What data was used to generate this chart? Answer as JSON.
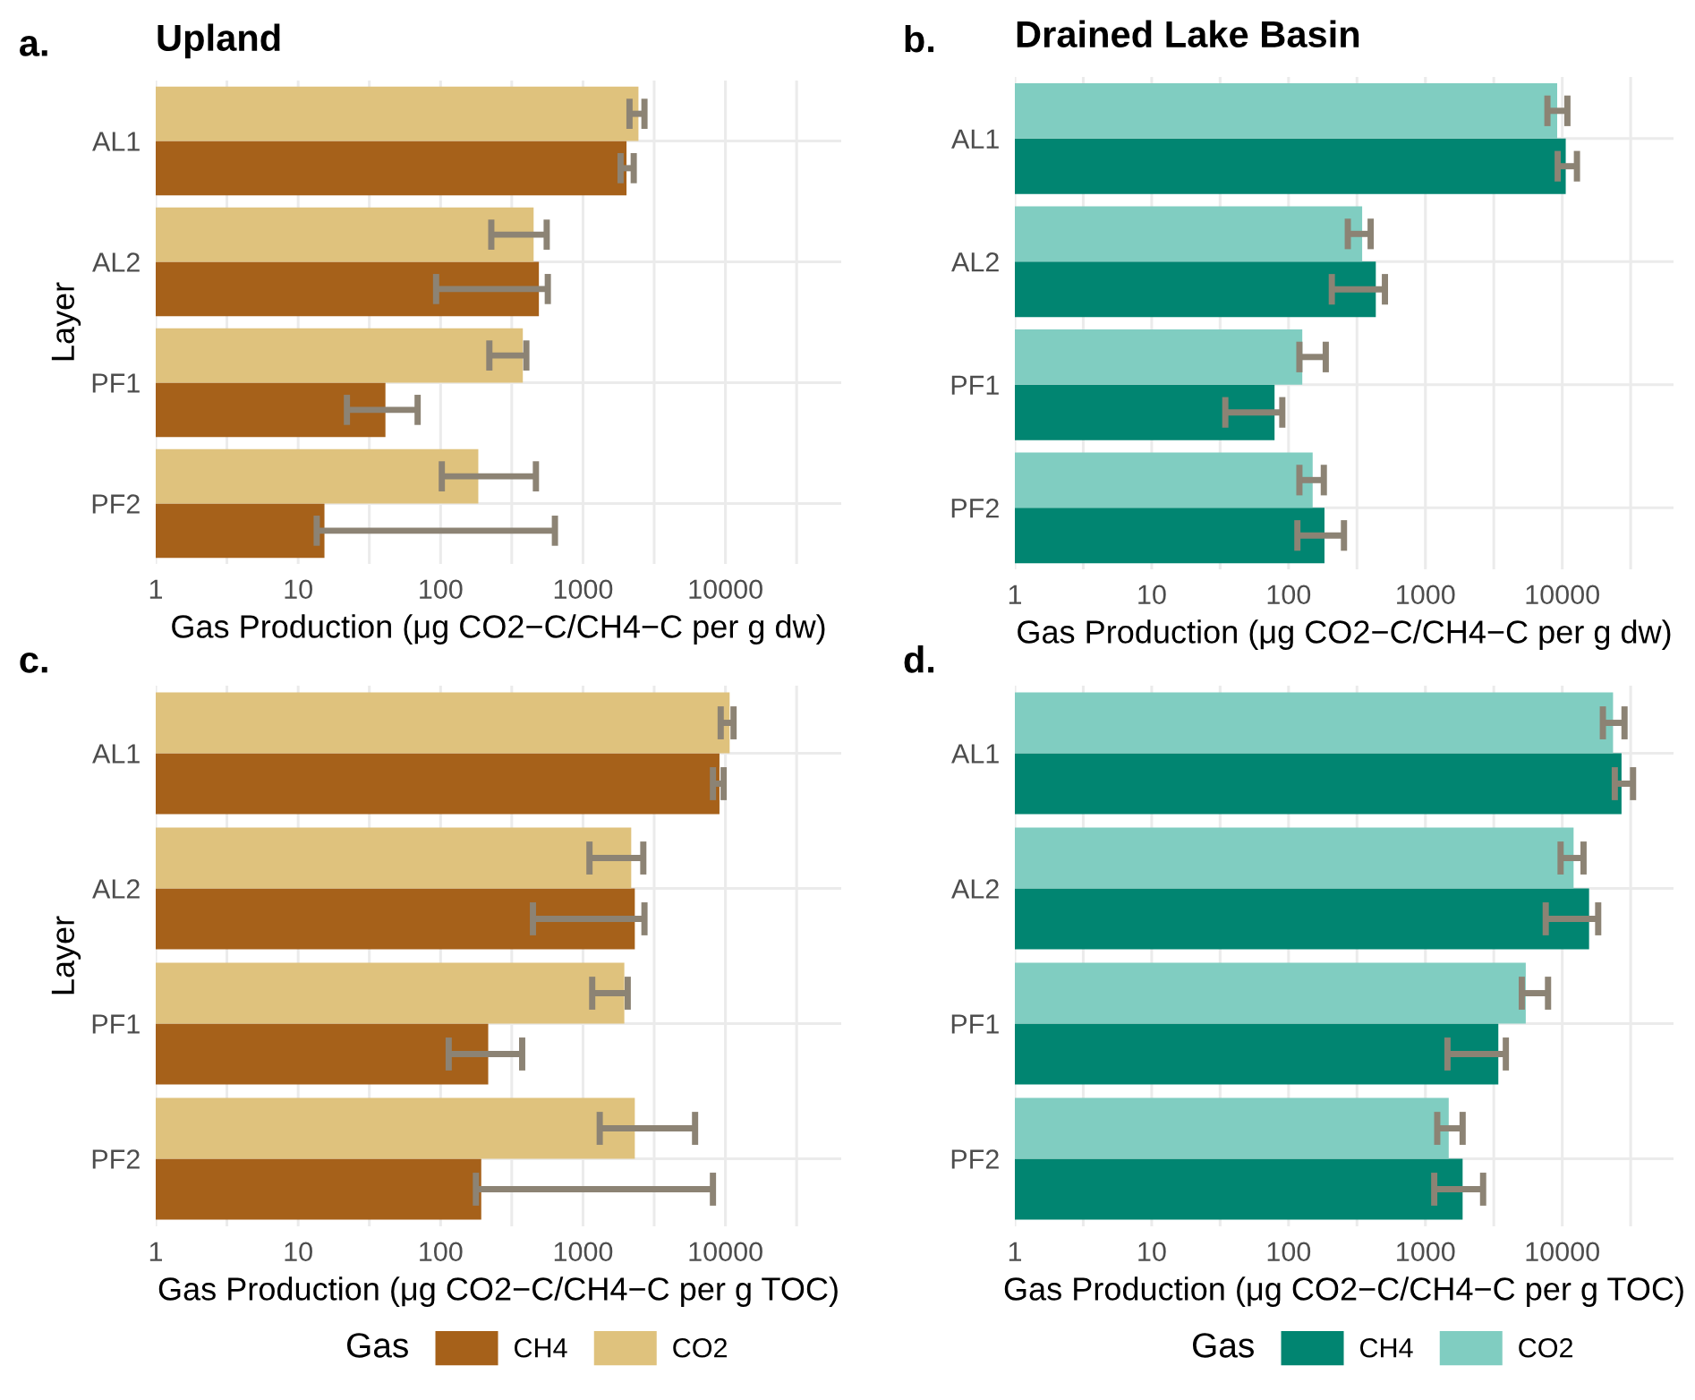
{
  "chart_data": [
    {
      "type": "bar",
      "orientation": "horizontal",
      "title": "Upland",
      "annotations": [
        "a."
      ],
      "xlabel": "Gas Production (μg CO2−C/CH4−C per g dw)",
      "ylabel": "Layer",
      "categories": [
        "AL1",
        "AL2",
        "PF1",
        "PF2"
      ],
      "log": "x",
      "xlim": [
        1,
        65000
      ],
      "xticks": [
        1,
        {
          "value": 3.16,
          "label": null
        },
        10,
        {
          "value": 31.6,
          "label": null
        },
        100,
        {
          "value": 316,
          "label": null
        },
        1000,
        {
          "value": 3160,
          "label": null
        },
        10000,
        {
          "value": 31600,
          "label": null
        }
      ],
      "grid": true,
      "legend": false,
      "series": [
        {
          "color": "#a6611a",
          "values": [
            2020,
            490,
            41,
            15.3
          ],
          "errors": [
            [
              1835,
              2270
            ],
            [
              93,
              566
            ],
            [
              22,
              69
            ],
            [
              13.5,
              635
            ]
          ]
        },
        {
          "color": "#dfc27d",
          "values": [
            2450,
            450,
            378,
            184
          ],
          "errors": [
            [
              2120,
              2700
            ],
            [
              227,
              556
            ],
            [
              220,
              400
            ],
            [
              102,
              467
            ]
          ]
        }
      ]
    },
    {
      "type": "bar",
      "orientation": "horizontal",
      "title": "Drained Lake Basin",
      "annotations": [
        "b."
      ],
      "xlabel": "Gas Production (μg CO2−C/CH4−C per g dw)",
      "categories": [
        "AL1",
        "AL2",
        "PF1",
        "PF2"
      ],
      "log": "x",
      "xlim": [
        1,
        65000
      ],
      "xticks": [
        1,
        {
          "value": 3.16,
          "label": null
        },
        10,
        {
          "value": 31.6,
          "label": null
        },
        100,
        {
          "value": 316,
          "label": null
        },
        1000,
        {
          "value": 3160,
          "label": null
        },
        10000,
        {
          "value": 31600,
          "label": null
        }
      ],
      "grid": true,
      "legend": false,
      "series": [
        {
          "color": "#018571",
          "values": [
            10600,
            434,
            79,
            183
          ],
          "errors": [
            [
              9260,
              12800
            ],
            [
              207,
              506
            ],
            [
              34.5,
              90
            ],
            [
              116,
              254
            ]
          ]
        },
        {
          "color": "#80cdc1",
          "values": [
            9180,
            345,
            126,
            150
          ],
          "errors": [
            [
              7790,
              10900
            ],
            [
              271,
              398
            ],
            [
              120,
              187
            ],
            [
              120,
              181
            ]
          ]
        }
      ]
    },
    {
      "type": "bar",
      "orientation": "horizontal",
      "annotations": [
        "c."
      ],
      "xlabel": "Gas Production (μg CO2−C/CH4−C per g TOC)",
      "ylabel": "Layer",
      "legend_title": "Gas",
      "categories": [
        "AL1",
        "AL2",
        "PF1",
        "PF2"
      ],
      "log": "x",
      "xlim": [
        1,
        65000
      ],
      "xticks": [
        1,
        {
          "value": 3.16,
          "label": null
        },
        10,
        {
          "value": 31.6,
          "label": null
        },
        100,
        {
          "value": 316,
          "label": null
        },
        1000,
        {
          "value": 3160,
          "label": null
        },
        10000,
        {
          "value": 31600,
          "label": null
        }
      ],
      "grid": true,
      "legend": "bottom",
      "series": [
        {
          "name": "CH4",
          "color": "#a6611a",
          "values": [
            9080,
            2310,
            216,
            193
          ],
          "errors": [
            [
              8170,
              9710
            ],
            [
              445,
              2700
            ],
            [
              114,
              374
            ],
            [
              177,
              8170
            ]
          ]
        },
        {
          "name": "CO2",
          "color": "#dfc27d",
          "values": [
            10700,
            2180,
            1950,
            2310
          ],
          "errors": [
            [
              9260,
              11400
            ],
            [
              1110,
              2650
            ],
            [
              1160,
              2060
            ],
            [
              1310,
              6120
            ]
          ]
        }
      ]
    },
    {
      "type": "bar",
      "orientation": "horizontal",
      "annotations": [
        "d."
      ],
      "xlabel": "Gas Production (μg CO2−C/CH4−C per g TOC)",
      "legend_title": "Gas",
      "categories": [
        "AL1",
        "AL2",
        "PF1",
        "PF2"
      ],
      "log": "x",
      "xlim": [
        1,
        65000
      ],
      "xticks": [
        1,
        {
          "value": 3.16,
          "label": null
        },
        10,
        {
          "value": 31.6,
          "label": null
        },
        100,
        {
          "value": 316,
          "label": null
        },
        1000,
        {
          "value": 3160,
          "label": null
        },
        10000,
        {
          "value": 31600,
          "label": null
        }
      ],
      "grid": true,
      "legend": "bottom",
      "series": [
        {
          "name": "CH4",
          "color": "#018571",
          "values": [
            27100,
            15700,
            3410,
            1870
          ],
          "errors": [
            [
              24200,
              32900
            ],
            [
              7570,
              18300
            ],
            [
              1450,
              3870
            ],
            [
              1160,
              2640
            ]
          ]
        },
        {
          "name": "CO2",
          "color": "#80cdc1",
          "values": [
            23500,
            12100,
            5410,
            1480
          ],
          "errors": [
            [
              19800,
              28500
            ],
            [
              9720,
              14300
            ],
            [
              5060,
              7870
            ],
            [
              1220,
              1870
            ]
          ]
        }
      ]
    }
  ]
}
